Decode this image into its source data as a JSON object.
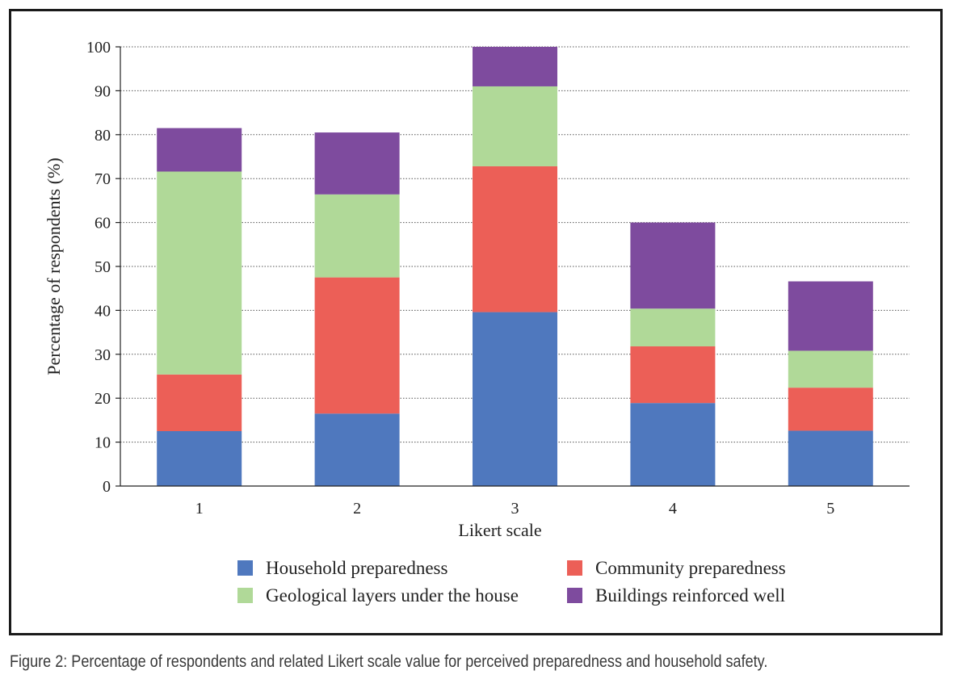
{
  "chart_data": {
    "type": "bar",
    "stacked": true,
    "categories": [
      "1",
      "2",
      "3",
      "4",
      "5"
    ],
    "series": [
      {
        "name": "Household preparedness",
        "color": "#4f78be",
        "values": [
          12.5,
          16.5,
          39.6,
          18.9,
          12.6
        ]
      },
      {
        "name": "Community preparedness",
        "color": "#ec5f57",
        "values": [
          12.9,
          31.0,
          33.2,
          12.9,
          9.8
        ]
      },
      {
        "name": "Geological layers under the house",
        "color": "#b0d998",
        "values": [
          46.2,
          18.9,
          18.2,
          8.6,
          8.4
        ]
      },
      {
        "name": "Buildings reinforced well",
        "color": "#7e4b9e",
        "values": [
          9.9,
          14.1,
          9.0,
          19.6,
          15.8
        ]
      }
    ],
    "xlabel": "Likert scale",
    "ylabel": "Percentage of respondents (%)",
    "ylim": [
      0,
      100
    ],
    "yticks": [
      "0",
      "10",
      "20",
      "30",
      "40",
      "50",
      "60",
      "70",
      "80",
      "90",
      "100"
    ],
    "grid": true,
    "legend_position": "bottom"
  },
  "caption": "Figure 2: Percentage of respondents and related Likert scale value for perceived preparedness and household safety."
}
